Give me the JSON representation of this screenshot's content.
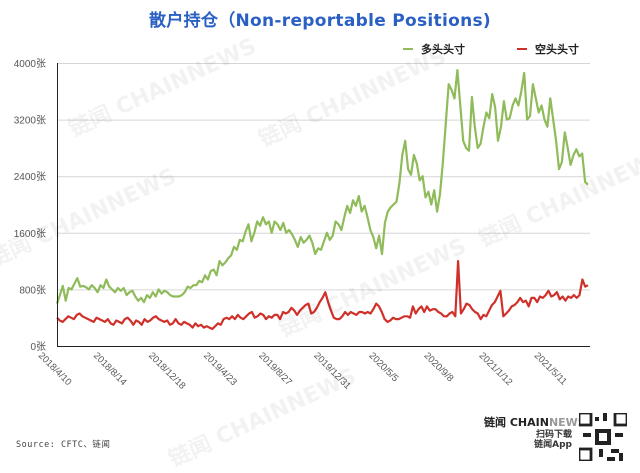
{
  "title": "散户持仓（Non-reportable Positions)",
  "legend": [
    {
      "label": "多头头寸",
      "color": "#8fbb5a"
    },
    {
      "label": "空头头寸",
      "color": "#d0302a"
    }
  ],
  "source": "Source: CFTC、链闻",
  "brand": {
    "cn": "链闻",
    "en_bold": "CHAIN",
    "en_light": "NEWS",
    "slogan_line1": "扫码下载",
    "slogan_line2": "链闻App"
  },
  "watermark_text": "链闻 CHAINNEWS",
  "chart_data": {
    "type": "line",
    "title": "散户持仓（Non-reportable Positions)",
    "xlabel": "",
    "ylabel": "",
    "y_unit": "张",
    "ylim": [
      0,
      4000
    ],
    "yticks": [
      0,
      800,
      1600,
      2400,
      3200,
      4000
    ],
    "ytick_labels": [
      "0张",
      "800张",
      "1600张",
      "2400张",
      "3200张",
      "4000张"
    ],
    "xtick_labels": [
      "2018/4/10",
      "2018/8/14",
      "2018/12/18",
      "2019/4/23",
      "2019/8/27",
      "2019/12/31",
      "2020/5/5",
      "2020/9/8",
      "2021/1/12",
      "2021/5/11"
    ],
    "grid": "horizontal",
    "legend_position": "top-right",
    "series": [
      {
        "name": "多头头寸",
        "color": "#8fbb5a",
        "values": [
          600,
          720,
          850,
          640,
          820,
          800,
          880,
          960,
          840,
          850,
          830,
          800,
          860,
          820,
          760,
          860,
          820,
          940,
          840,
          800,
          760,
          820,
          780,
          820,
          720,
          760,
          780,
          700,
          640,
          680,
          620,
          720,
          680,
          760,
          700,
          800,
          740,
          780,
          760,
          720,
          700,
          700,
          700,
          720,
          760,
          840,
          820,
          860,
          860,
          920,
          900,
          1000,
          940,
          1060,
          1080,
          1000,
          1200,
          1140,
          1180,
          1240,
          1280,
          1400,
          1360,
          1500,
          1480,
          1620,
          1720,
          1480,
          1600,
          1760,
          1700,
          1820,
          1720,
          1760,
          1600,
          1760,
          1720,
          1640,
          1740,
          1600,
          1640,
          1580,
          1500,
          1400,
          1540,
          1460,
          1500,
          1560,
          1460,
          1300,
          1380,
          1360,
          1480,
          1600,
          1500,
          1560,
          1760,
          1720,
          1640,
          1820,
          1980,
          1880,
          2060,
          1980,
          2120,
          1900,
          1980,
          1820,
          1640,
          1540,
          1380,
          1560,
          1300,
          1740,
          1900,
          1960,
          2000,
          2040,
          2300,
          2700,
          2900,
          2500,
          2420,
          2700,
          2580,
          2340,
          2400,
          2100,
          2180,
          2000,
          2200,
          1900,
          2150,
          2600,
          3150,
          3700,
          3620,
          3500,
          3900,
          3400,
          2900,
          2800,
          2760,
          3520,
          3100,
          2800,
          2860,
          3100,
          3300,
          3220,
          3560,
          3380,
          2900,
          3100,
          3460,
          3200,
          3220,
          3400,
          3500,
          3400,
          3600,
          3860,
          3200,
          3250,
          3700,
          3500,
          3300,
          3400,
          3200,
          3100,
          3500,
          3200,
          2900,
          2500,
          2600,
          3020,
          2800,
          2560,
          2700,
          2780,
          2680,
          2720,
          2320,
          2280
        ]
      },
      {
        "name": "空头头寸",
        "color": "#d0302a",
        "values": [
          400,
          360,
          340,
          380,
          420,
          400,
          380,
          440,
          460,
          420,
          400,
          380,
          360,
          340,
          400,
          380,
          360,
          340,
          380,
          320,
          300,
          360,
          340,
          320,
          380,
          400,
          360,
          300,
          360,
          340,
          300,
          380,
          340,
          360,
          400,
          420,
          380,
          360,
          340,
          360,
          300,
          320,
          380,
          320,
          300,
          340,
          320,
          300,
          260,
          320,
          280,
          300,
          260,
          280,
          260,
          240,
          280,
          320,
          300,
          380,
          400,
          380,
          420,
          380,
          440,
          400,
          380,
          420,
          460,
          480,
          400,
          420,
          460,
          440,
          380,
          420,
          400,
          440,
          440,
          380,
          480,
          460,
          480,
          540,
          500,
          440,
          500,
          540,
          580,
          600,
          460,
          480,
          540,
          620,
          680,
          760,
          620,
          500,
          400,
          380,
          380,
          420,
          480,
          440,
          480,
          460,
          440,
          480,
          480,
          460,
          480,
          460,
          520,
          600,
          560,
          480,
          380,
          340,
          360,
          400,
          380,
          380,
          400,
          420,
          420,
          400,
          560,
          460,
          520,
          560,
          480,
          560,
          500,
          520,
          520,
          480,
          460,
          420,
          420,
          460,
          480,
          420,
          1200,
          460,
          520,
          600,
          580,
          520,
          480,
          460,
          380,
          440,
          420,
          500,
          580,
          620,
          700,
          780,
          420,
          460,
          500,
          560,
          580,
          620,
          680,
          620,
          640,
          560,
          680,
          680,
          620,
          700,
          680,
          720,
          780,
          700,
          720,
          760,
          660,
          700,
          640,
          700,
          680,
          720,
          680,
          720,
          940,
          840,
          860
        ]
      }
    ]
  }
}
